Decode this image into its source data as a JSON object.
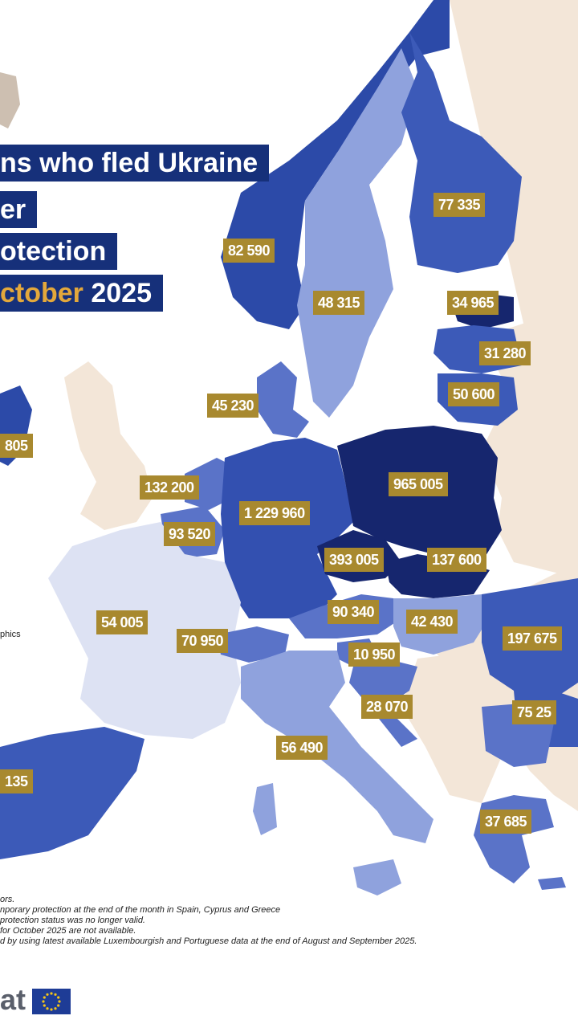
{
  "title": {
    "line1": "ns who fled Ukraine",
    "line2": "er",
    "line3": "otection",
    "line4_highlight": "ctober",
    "line4_rest": " 2025"
  },
  "side_note": "phics",
  "notes": [
    "ors.",
    "nporary protection at the end of the month in Spain, Cyprus and Greece",
    "protection status was no longer valid.",
    "for October 2025 are not available.",
    "d by using latest available Luxembourgish and Portuguese data at the end of August and September 2025."
  ],
  "logo_text": "at",
  "colors": {
    "darkest": "#16266e",
    "dark": "#2c4aa8",
    "medium": "#5a73c8",
    "light": "#8fa2dd",
    "lightest": "#d9def2",
    "non_eu": "#f3e6d8",
    "label_bg": "#a8892f",
    "title_bg": "#16307a",
    "highlight": "#e3a83b"
  },
  "labels": {
    "norway": "82 590",
    "sweden": "48 315",
    "finland": "77 335",
    "estonia": "34 965",
    "latvia": "31 280",
    "lithuania": "50 600",
    "denmark": "45 230",
    "ireland": "805",
    "netherlands": "132 200",
    "belgium": "93 520",
    "germany": "1 229 960",
    "poland": "965 005",
    "czechia": "393 005",
    "slovakia": "137 600",
    "austria": "90 340",
    "hungary": "42 430",
    "romania": "197 675",
    "moldova": "75 25",
    "france": "54 005",
    "switzerland": "70 950",
    "slovenia": "10 950",
    "croatia": "28 070",
    "italy": "56 490",
    "spain": "135",
    "greece": "37 685"
  }
}
